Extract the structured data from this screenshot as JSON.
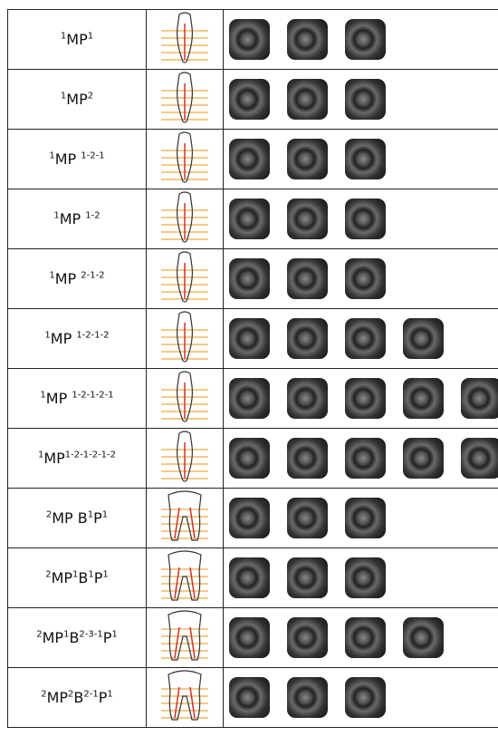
{
  "table": {
    "rows": [
      {
        "label": [
          "1",
          "MP",
          "1"
        ]
      },
      {
        "label": [
          "1",
          "MP",
          "2"
        ]
      },
      {
        "label": [
          "1",
          "MP ",
          "1-2-1"
        ]
      },
      {
        "label": [
          "1",
          "MP ",
          "1-2"
        ]
      },
      {
        "label": [
          "1",
          "MP ",
          "2-1-2"
        ]
      },
      {
        "label": [
          "1",
          "MP ",
          "1-2-1-2"
        ]
      },
      {
        "label": [
          "1",
          "MP ",
          "1-2-1-2-1"
        ]
      },
      {
        "label": [
          "1",
          "MP",
          "1-2-1-2-1-2"
        ]
      },
      {
        "label": [
          "2",
          "MP B",
          "1",
          "P",
          "1"
        ]
      },
      {
        "label": [
          "2",
          "MP",
          "1",
          "B",
          "1",
          "P",
          "1"
        ]
      },
      {
        "label": [
          "2",
          "MP",
          "1",
          "B",
          "2-3-1",
          "P",
          "1"
        ]
      },
      {
        "label": [
          "2",
          "MP",
          "2",
          "B",
          "2-1",
          "P",
          "1"
        ]
      }
    ]
  }
}
